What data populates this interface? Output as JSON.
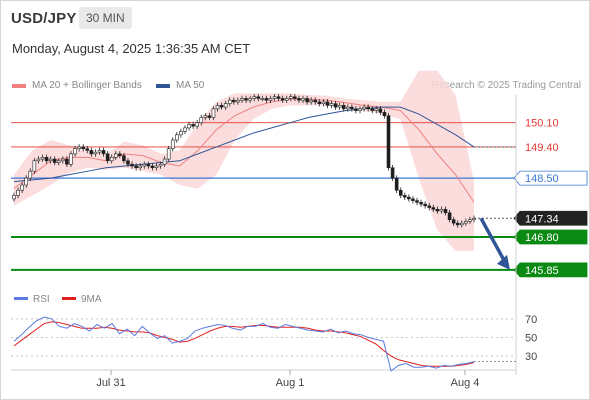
{
  "header": {
    "symbol": "USD/JPY",
    "timeframe": "30 MIN"
  },
  "datetime": "Monday, August 4, 2025 1:36:35 AM CET",
  "legend": [
    {
      "label": "MA 20 + Bollinger Bands",
      "color": "#f08080"
    },
    {
      "label": "MA 50",
      "color": "#2f5597"
    }
  ],
  "credit": "Research © 2025 Trading Central",
  "colors": {
    "resistance": "#e53935",
    "pivot": "#3a78d6",
    "support": "#0a8a12",
    "current": "#333333",
    "arrow": "#2f5597",
    "band": "#fbd7d7"
  },
  "chart_data": [
    {
      "type": "candlestick",
      "title": "USD/JPY",
      "x_ticks": [
        "Jul 31",
        "Aug 1",
        "Aug 4"
      ],
      "ylim": [
        145.5,
        150.9
      ],
      "levels": [
        {
          "label": "150.10",
          "value": 150.1,
          "kind": "resistance"
        },
        {
          "label": "149.40",
          "value": 149.4,
          "kind": "resistance"
        },
        {
          "label": "148.50",
          "value": 148.5,
          "kind": "pivot"
        },
        {
          "label": "147.34",
          "value": 147.34,
          "kind": "current"
        },
        {
          "label": "146.80",
          "value": 146.8,
          "kind": "support"
        },
        {
          "label": "145.85",
          "value": 145.85,
          "kind": "support"
        }
      ],
      "close": [
        148.0,
        148.15,
        148.3,
        148.5,
        148.7,
        149.0,
        149.05,
        149.1,
        149.0,
        149.05,
        148.95,
        149.0,
        149.05,
        148.9,
        149.2,
        149.35,
        149.4,
        149.35,
        149.3,
        149.2,
        149.25,
        149.3,
        149.2,
        149.0,
        149.1,
        149.2,
        149.15,
        149.0,
        148.9,
        148.85,
        148.8,
        148.85,
        148.9,
        148.85,
        148.8,
        148.85,
        148.9,
        149.05,
        149.35,
        149.6,
        149.75,
        149.85,
        149.95,
        150.05,
        150.0,
        150.1,
        150.25,
        150.3,
        150.25,
        150.5,
        150.6,
        150.55,
        150.65,
        150.75,
        150.7,
        150.75,
        150.8,
        150.75,
        150.8,
        150.85,
        150.8,
        150.8,
        150.75,
        150.8,
        150.85,
        150.8,
        150.75,
        150.8,
        150.85,
        150.8,
        150.75,
        150.8,
        150.7,
        150.75,
        150.7,
        150.65,
        150.7,
        150.6,
        150.65,
        150.55,
        150.6,
        150.5,
        150.55,
        150.5,
        150.45,
        150.5,
        150.55,
        150.5,
        150.45,
        150.5,
        150.4,
        150.3,
        148.8,
        148.5,
        148.15,
        148.0,
        147.95,
        147.9,
        147.85,
        147.8,
        147.75,
        147.7,
        147.65,
        147.6,
        147.55,
        147.6,
        147.5,
        147.3,
        147.2,
        147.15,
        147.2,
        147.25,
        147.3,
        147.34
      ],
      "ma20": {
        "x_range": [
          0,
          113
        ],
        "values": [
          148.2,
          148.6,
          149.0,
          149.1,
          149.1,
          149.0,
          149.2,
          149.15,
          148.95,
          148.85,
          149.3,
          149.9,
          150.3,
          150.55,
          150.7,
          150.78,
          150.78,
          150.75,
          150.68,
          150.6,
          150.55,
          150.45,
          149.9,
          149.2,
          148.6,
          147.8
        ]
      },
      "bollinger_upper": [
        148.6,
        149.3,
        149.6,
        149.45,
        149.3,
        149.2,
        149.55,
        149.45,
        149.2,
        149.3,
        150.1,
        150.7,
        150.95,
        150.95,
        150.95,
        150.95,
        150.9,
        150.88,
        150.8,
        150.75,
        150.7,
        150.7,
        151.6,
        151.6,
        150.9,
        148.4
      ],
      "bollinger_lower": [
        147.7,
        148.0,
        148.3,
        148.65,
        148.8,
        148.75,
        148.8,
        148.7,
        148.6,
        148.3,
        148.2,
        148.6,
        149.6,
        150.2,
        150.5,
        150.6,
        150.6,
        150.6,
        150.52,
        150.45,
        150.35,
        150.2,
        148.5,
        147.0,
        146.4,
        146.4
      ],
      "ma50": {
        "x_range": [
          0,
          113
        ],
        "values": [
          148.4,
          148.45,
          148.5,
          148.6,
          148.7,
          148.8,
          148.85,
          148.9,
          148.95,
          149.0,
          149.2,
          149.4,
          149.6,
          149.8,
          149.95,
          150.1,
          150.25,
          150.35,
          150.45,
          150.5,
          150.55,
          150.55,
          150.35,
          150.05,
          149.75,
          149.4
        ]
      },
      "forecast_arrow": {
        "from": 147.34,
        "to": 145.85
      }
    },
    {
      "type": "line",
      "title": "RSI",
      "series": [
        {
          "name": "RSI",
          "color": "#5b7be0"
        },
        {
          "name": "9MA",
          "color": "#e02020"
        }
      ],
      "y_ticks": [
        70,
        50,
        30
      ],
      "ylim": [
        15,
        85
      ],
      "rsi": [
        46,
        53,
        61,
        68,
        72,
        70,
        62,
        60,
        65,
        62,
        57,
        64,
        60,
        65,
        54,
        59,
        52,
        62,
        55,
        49,
        52,
        44,
        46,
        49,
        57,
        60,
        62,
        64,
        63,
        60,
        58,
        62,
        62,
        65,
        61,
        60,
        64,
        62,
        60,
        58,
        57,
        56,
        59,
        55,
        57,
        54,
        53,
        50,
        48,
        46,
        14,
        20,
        22,
        18,
        18,
        19,
        17,
        20,
        19,
        21,
        22,
        24
      ],
      "rsi_ma": [
        41,
        47,
        53,
        59,
        65,
        67,
        66,
        64,
        62,
        60,
        60,
        60,
        61,
        60,
        58,
        57,
        56,
        56,
        55,
        52,
        50,
        48,
        45,
        46,
        49,
        53,
        57,
        60,
        62,
        62,
        61,
        62,
        63,
        63,
        62,
        61,
        61,
        61,
        61,
        60,
        58,
        57,
        57,
        56,
        55,
        53,
        51,
        47,
        43,
        36,
        30,
        26,
        24,
        22,
        20,
        19,
        19,
        19,
        19,
        20,
        21,
        23
      ]
    }
  ]
}
